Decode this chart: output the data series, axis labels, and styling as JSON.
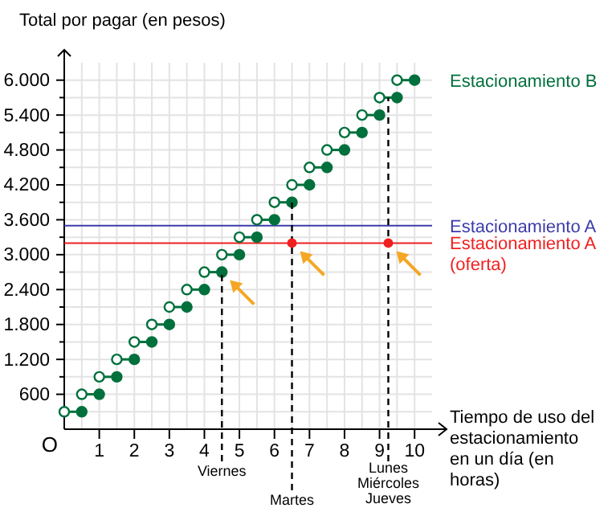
{
  "chart_data": {
    "type": "line",
    "xlabel": "Tiempo de uso del estacionamiento en un día (en horas)",
    "ylabel": "Total por pagar (en pesos)",
    "xlim": [
      0,
      10.5
    ],
    "ylim": [
      0,
      6300
    ],
    "xticks": [
      {
        "value": 0.5,
        "label": null
      },
      1,
      {
        "value": 1.5,
        "label": null
      },
      2,
      {
        "value": 2.5,
        "label": null
      },
      3,
      {
        "value": 3.5,
        "label": null
      },
      4,
      {
        "value": 4.5,
        "label": null
      },
      5,
      {
        "value": 5.5,
        "label": null
      },
      6,
      {
        "value": 6.5,
        "label": null
      },
      7,
      {
        "value": 7.5,
        "label": null
      },
      8,
      {
        "value": 8.5,
        "label": null
      },
      9,
      {
        "value": 9.5,
        "label": null
      },
      10
    ],
    "yticks": [
      {
        "value": 300,
        "label": null
      },
      {
        "value": 600,
        "label": "600"
      },
      {
        "value": 900,
        "label": null
      },
      {
        "value": 1200,
        "label": "1.200"
      },
      {
        "value": 1500,
        "label": null
      },
      {
        "value": 1800,
        "label": "1.800"
      },
      {
        "value": 2100,
        "label": null
      },
      {
        "value": 2400,
        "label": "2.400"
      },
      {
        "value": 2700,
        "label": null
      },
      {
        "value": 3000,
        "label": "3.000"
      },
      {
        "value": 3300,
        "label": null
      },
      {
        "value": 3600,
        "label": "3.600"
      },
      {
        "value": 3900,
        "label": null
      },
      {
        "value": 4200,
        "label": "4.200"
      },
      {
        "value": 4500,
        "label": null
      },
      {
        "value": 4800,
        "label": "4.800"
      },
      {
        "value": 5100,
        "label": null
      },
      {
        "value": 5400,
        "label": "5.400"
      },
      {
        "value": 5700,
        "label": null
      },
      {
        "value": 6000,
        "label": "6.000"
      }
    ],
    "grid": true,
    "marker": "circle",
    "series": [
      {
        "color": "#00703c",
        "x": [
          0,
          0.5
        ],
        "values": [
          300,
          300
        ]
      },
      {
        "color": "#00703c",
        "x": [
          0.5,
          1
        ],
        "values": [
          600,
          600
        ]
      },
      {
        "color": "#00703c",
        "x": [
          1,
          1.5
        ],
        "values": [
          900,
          900
        ]
      },
      {
        "color": "#00703c",
        "x": [
          1.5,
          2
        ],
        "values": [
          1200,
          1200
        ]
      },
      {
        "color": "#00703c",
        "x": [
          2,
          2.5
        ],
        "values": [
          1500,
          1500
        ]
      },
      {
        "color": "#00703c",
        "x": [
          2.5,
          3
        ],
        "values": [
          1800,
          1800
        ]
      },
      {
        "color": "#00703c",
        "x": [
          3,
          3.5
        ],
        "values": [
          2100,
          2100
        ]
      },
      {
        "color": "#00703c",
        "x": [
          3.5,
          4
        ],
        "values": [
          2400,
          2400
        ]
      },
      {
        "color": "#00703c",
        "x": [
          4,
          4.5
        ],
        "values": [
          2700,
          2700
        ]
      },
      {
        "color": "#00703c",
        "x": [
          4.5,
          5
        ],
        "values": [
          3000,
          3000
        ]
      },
      {
        "color": "#00703c",
        "x": [
          5,
          5.5
        ],
        "values": [
          3300,
          3300
        ]
      },
      {
        "color": "#00703c",
        "x": [
          5.5,
          6
        ],
        "values": [
          3600,
          3600
        ]
      },
      {
        "color": "#00703c",
        "x": [
          6,
          6.5
        ],
        "values": [
          3900,
          3900
        ]
      },
      {
        "color": "#00703c",
        "x": [
          6.5,
          7
        ],
        "values": [
          4200,
          4200
        ]
      },
      {
        "color": "#00703c",
        "x": [
          7,
          7.5
        ],
        "values": [
          4500,
          4500
        ]
      },
      {
        "color": "#00703c",
        "x": [
          7.5,
          8
        ],
        "values": [
          4800,
          4800
        ]
      },
      {
        "color": "#00703c",
        "x": [
          8,
          8.5
        ],
        "values": [
          5100,
          5100
        ]
      },
      {
        "color": "#00703c",
        "x": [
          8.5,
          9
        ],
        "values": [
          5400,
          5400
        ]
      },
      {
        "color": "#00703c",
        "x": [
          9,
          9.5
        ],
        "values": [
          5700,
          5700
        ]
      },
      {
        "name": "Estacionamiento B",
        "color": "#00703c",
        "x": [
          9.5,
          10
        ],
        "values": [
          6000,
          6000
        ]
      },
      {
        "color": "#000000",
        "line_style": "dashed",
        "marker": "none",
        "x": [
          4.5,
          4.5
        ],
        "values": [
          0,
          2700
        ]
      },
      {
        "color": "#000000",
        "line_style": "dashed",
        "marker": "none",
        "x": [
          6.5,
          6.5
        ],
        "values": [
          0,
          3900
        ]
      },
      {
        "color": "#000000",
        "line_style": "dashed",
        "marker": "none",
        "x": [
          9.25,
          9.25
        ],
        "values": [
          0,
          5700
        ]
      },
      {
        "type": "scatter",
        "color": "#f02020",
        "marker": "circle",
        "x": [
          6.5,
          9.25
        ],
        "values": [
          3200,
          3200
        ]
      }
    ],
    "ref_lines": [
      {
        "axis": "y",
        "value": 3500,
        "label": "Estacionamiento A",
        "color": "#3c3caa"
      },
      {
        "axis": "y",
        "value": 3200,
        "label": "Estacionamiento A (oferta)",
        "color": "#f02020"
      }
    ],
    "annotations": [
      "O",
      "Viernes",
      "Martes",
      "Lunes Miércoles Jueves"
    ]
  }
}
